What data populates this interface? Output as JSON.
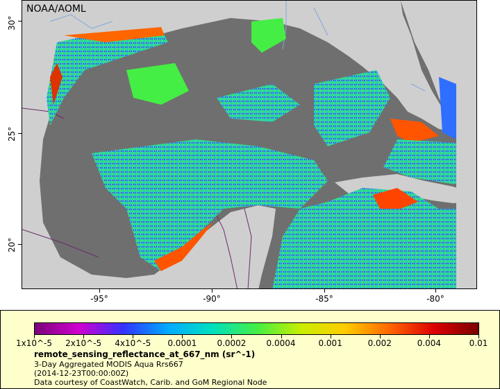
{
  "map": {
    "credit": "NOAA/AOML",
    "lat_ticks": [
      "30°",
      "25°",
      "20°"
    ],
    "lon_ticks": [
      "-95°",
      "-90°",
      "-85°",
      "-80°"
    ],
    "colors": {
      "ocean": "#6f6f6f",
      "land": "#cfcfcf",
      "rivers": "#7fa7d8",
      "borders": "#6a2a6a"
    }
  },
  "legend": {
    "tick_labels": [
      "1x10^-5",
      "2x10^-5",
      "4x10^-5",
      "0.0001",
      "0.0002",
      "0.0004",
      "0.001",
      "0.002",
      "0.004",
      "0.01"
    ],
    "variable": "remote_sensing_reflectance_at_667_nm (sr^-1)",
    "dataset": "3-Day Aggregated MODIS Aqua Rrs667",
    "time": "(2014-12-23T00:00:00Z)",
    "courtesy": "Data courtesy of CoastWatch, Carib. and GoM Regional Node",
    "colormap": [
      "#7a007a",
      "#d000d0",
      "#3333ff",
      "#00aaff",
      "#00e0c0",
      "#44ee44",
      "#c8ee00",
      "#ffcc00",
      "#ff6600",
      "#dd0000",
      "#7a0000"
    ]
  }
}
